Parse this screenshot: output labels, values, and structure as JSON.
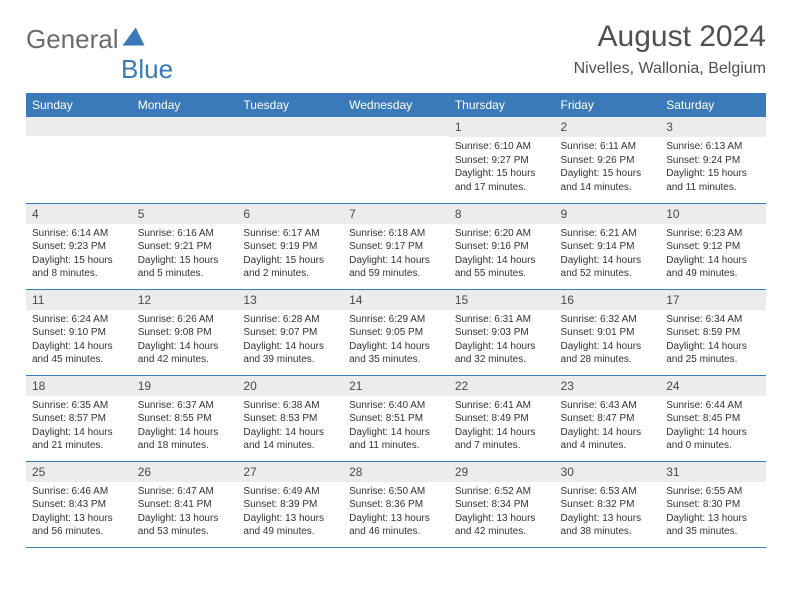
{
  "logo": {
    "part1": "General",
    "part2": "Blue"
  },
  "title": {
    "month": "August 2024",
    "location": "Nivelles, Wallonia, Belgium"
  },
  "colors": {
    "header_bg": "#3a7ab8",
    "header_text": "#ffffff",
    "daynum_bg": "#ececec",
    "border": "#3a7ab8",
    "logo_gray": "#6b6b6b",
    "logo_blue": "#3a7ab8"
  },
  "weekdays": [
    "Sunday",
    "Monday",
    "Tuesday",
    "Wednesday",
    "Thursday",
    "Friday",
    "Saturday"
  ],
  "weeks": [
    [
      null,
      null,
      null,
      null,
      {
        "n": "1",
        "sr": "6:10 AM",
        "ss": "9:27 PM",
        "dl": "15 hours and 17 minutes."
      },
      {
        "n": "2",
        "sr": "6:11 AM",
        "ss": "9:26 PM",
        "dl": "15 hours and 14 minutes."
      },
      {
        "n": "3",
        "sr": "6:13 AM",
        "ss": "9:24 PM",
        "dl": "15 hours and 11 minutes."
      }
    ],
    [
      {
        "n": "4",
        "sr": "6:14 AM",
        "ss": "9:23 PM",
        "dl": "15 hours and 8 minutes."
      },
      {
        "n": "5",
        "sr": "6:16 AM",
        "ss": "9:21 PM",
        "dl": "15 hours and 5 minutes."
      },
      {
        "n": "6",
        "sr": "6:17 AM",
        "ss": "9:19 PM",
        "dl": "15 hours and 2 minutes."
      },
      {
        "n": "7",
        "sr": "6:18 AM",
        "ss": "9:17 PM",
        "dl": "14 hours and 59 minutes."
      },
      {
        "n": "8",
        "sr": "6:20 AM",
        "ss": "9:16 PM",
        "dl": "14 hours and 55 minutes."
      },
      {
        "n": "9",
        "sr": "6:21 AM",
        "ss": "9:14 PM",
        "dl": "14 hours and 52 minutes."
      },
      {
        "n": "10",
        "sr": "6:23 AM",
        "ss": "9:12 PM",
        "dl": "14 hours and 49 minutes."
      }
    ],
    [
      {
        "n": "11",
        "sr": "6:24 AM",
        "ss": "9:10 PM",
        "dl": "14 hours and 45 minutes."
      },
      {
        "n": "12",
        "sr": "6:26 AM",
        "ss": "9:08 PM",
        "dl": "14 hours and 42 minutes."
      },
      {
        "n": "13",
        "sr": "6:28 AM",
        "ss": "9:07 PM",
        "dl": "14 hours and 39 minutes."
      },
      {
        "n": "14",
        "sr": "6:29 AM",
        "ss": "9:05 PM",
        "dl": "14 hours and 35 minutes."
      },
      {
        "n": "15",
        "sr": "6:31 AM",
        "ss": "9:03 PM",
        "dl": "14 hours and 32 minutes."
      },
      {
        "n": "16",
        "sr": "6:32 AM",
        "ss": "9:01 PM",
        "dl": "14 hours and 28 minutes."
      },
      {
        "n": "17",
        "sr": "6:34 AM",
        "ss": "8:59 PM",
        "dl": "14 hours and 25 minutes."
      }
    ],
    [
      {
        "n": "18",
        "sr": "6:35 AM",
        "ss": "8:57 PM",
        "dl": "14 hours and 21 minutes."
      },
      {
        "n": "19",
        "sr": "6:37 AM",
        "ss": "8:55 PM",
        "dl": "14 hours and 18 minutes."
      },
      {
        "n": "20",
        "sr": "6:38 AM",
        "ss": "8:53 PM",
        "dl": "14 hours and 14 minutes."
      },
      {
        "n": "21",
        "sr": "6:40 AM",
        "ss": "8:51 PM",
        "dl": "14 hours and 11 minutes."
      },
      {
        "n": "22",
        "sr": "6:41 AM",
        "ss": "8:49 PM",
        "dl": "14 hours and 7 minutes."
      },
      {
        "n": "23",
        "sr": "6:43 AM",
        "ss": "8:47 PM",
        "dl": "14 hours and 4 minutes."
      },
      {
        "n": "24",
        "sr": "6:44 AM",
        "ss": "8:45 PM",
        "dl": "14 hours and 0 minutes."
      }
    ],
    [
      {
        "n": "25",
        "sr": "6:46 AM",
        "ss": "8:43 PM",
        "dl": "13 hours and 56 minutes."
      },
      {
        "n": "26",
        "sr": "6:47 AM",
        "ss": "8:41 PM",
        "dl": "13 hours and 53 minutes."
      },
      {
        "n": "27",
        "sr": "6:49 AM",
        "ss": "8:39 PM",
        "dl": "13 hours and 49 minutes."
      },
      {
        "n": "28",
        "sr": "6:50 AM",
        "ss": "8:36 PM",
        "dl": "13 hours and 46 minutes."
      },
      {
        "n": "29",
        "sr": "6:52 AM",
        "ss": "8:34 PM",
        "dl": "13 hours and 42 minutes."
      },
      {
        "n": "30",
        "sr": "6:53 AM",
        "ss": "8:32 PM",
        "dl": "13 hours and 38 minutes."
      },
      {
        "n": "31",
        "sr": "6:55 AM",
        "ss": "8:30 PM",
        "dl": "13 hours and 35 minutes."
      }
    ]
  ],
  "labels": {
    "sunrise": "Sunrise:",
    "sunset": "Sunset:",
    "daylight": "Daylight:"
  }
}
